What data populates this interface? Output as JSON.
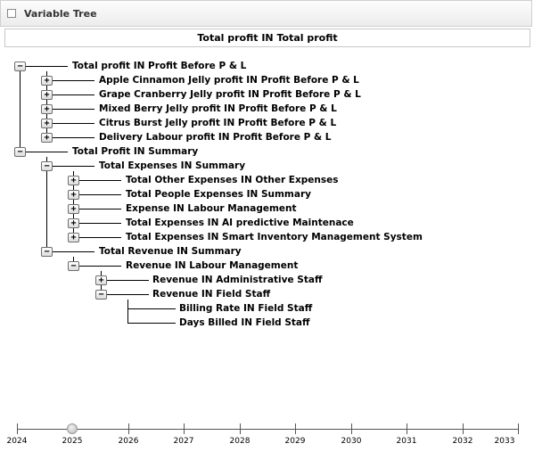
{
  "panel": {
    "title": "Variable Tree"
  },
  "root": {
    "label": "Total profit IN Total profit"
  },
  "tree": [
    {
      "label": "Total profit IN Profit Before P & L",
      "toggle": "−"
    },
    {
      "label": "Apple Cinnamon Jelly profit IN Profit Before P & L",
      "toggle": "+"
    },
    {
      "label": "Grape Cranberry Jelly profit IN Profit Before P & L",
      "toggle": "+"
    },
    {
      "label": "Mixed Berry Jelly profit IN Profit Before P & L",
      "toggle": "+"
    },
    {
      "label": "Citrus Burst Jelly profit IN Profit Before P & L",
      "toggle": "+"
    },
    {
      "label": "Delivery Labour profit IN Profit Before P & L",
      "toggle": "+"
    },
    {
      "label": "Total Profit IN Summary",
      "toggle": "−"
    },
    {
      "label": "Total Expenses IN Summary",
      "toggle": "−"
    },
    {
      "label": "Total Other Expenses IN Other Expenses",
      "toggle": "+"
    },
    {
      "label": "Total People Expenses IN Summary",
      "toggle": "+"
    },
    {
      "label": "Expense IN Labour Management",
      "toggle": "+"
    },
    {
      "label": "Total Expenses IN AI predictive Maintenace",
      "toggle": "+"
    },
    {
      "label": "Total Expenses IN Smart Inventory Management System",
      "toggle": "+"
    },
    {
      "label": "Total Revenue IN Summary",
      "toggle": "−"
    },
    {
      "label": "Revenue IN Labour Management",
      "toggle": "−"
    },
    {
      "label": "Revenue IN Administrative Staff",
      "toggle": "+"
    },
    {
      "label": "Revenue IN Field Staff",
      "toggle": "−"
    },
    {
      "label": "Billing Rate IN Field Staff"
    },
    {
      "label": "Days Billed IN Field Staff"
    }
  ],
  "timeline": {
    "years": [
      "2024",
      "2025",
      "2026",
      "2027",
      "2028",
      "2029",
      "2030",
      "2031",
      "2032",
      "2033"
    ],
    "selected_year": "2025"
  }
}
